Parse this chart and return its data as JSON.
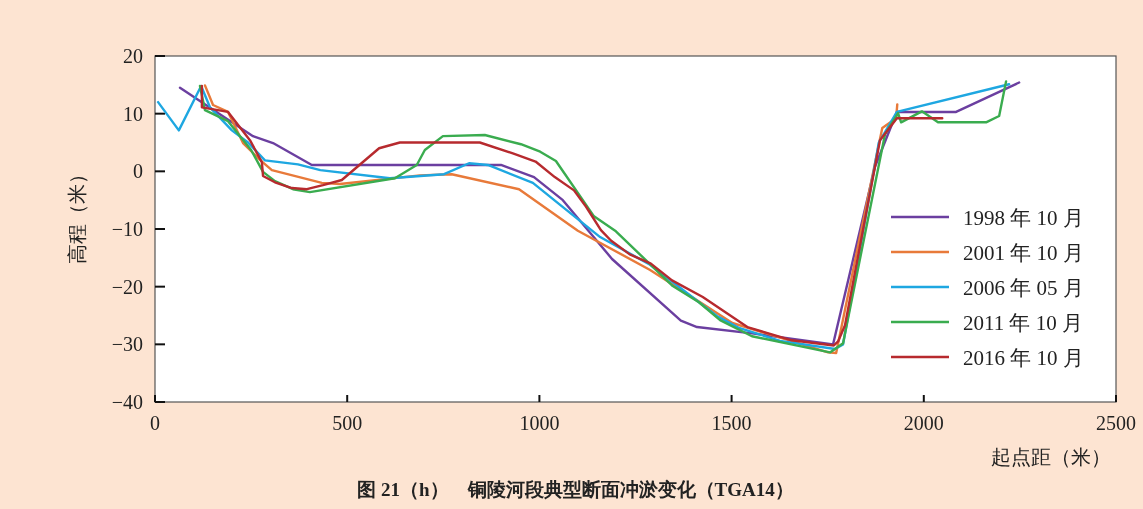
{
  "chart_data": {
    "type": "line",
    "title": "图 21（h）　铜陵河段典型断面冲淤变化（TGA14）",
    "xlabel": "起点距（米）",
    "ylabel": "高程（米）",
    "xlim": [
      0,
      2500
    ],
    "xticks": [
      0,
      500,
      1000,
      1500,
      2000,
      2500
    ],
    "ylim": [
      -40,
      20
    ],
    "yticks": [
      -40,
      -30,
      -20,
      -10,
      0,
      10,
      20
    ],
    "grid": false,
    "legend": "right",
    "series": [
      {
        "name": "1998 年 10 月",
        "color": "#6b3fa0",
        "x": [
          65,
          255,
          307,
          408,
          900,
          986,
          1061,
          1189,
          1368,
          1410,
          1553,
          1764,
          1873,
          1930,
          2084,
          2248
        ],
        "values": [
          14.5,
          6.1,
          4.9,
          1.1,
          1.1,
          -1,
          -5,
          -15.2,
          -25.9,
          -27,
          -28.1,
          -30,
          0.8,
          10.3,
          10.3,
          15.4
        ]
      },
      {
        "name": "2001 年 10 月",
        "color": "#e87a3a",
        "x": [
          130,
          151,
          190,
          229,
          273,
          304,
          434,
          481,
          689,
          772,
          947,
          1100,
          1288,
          1502,
          1751,
          1772,
          1881,
          1892,
          1928,
          1931
        ],
        "values": [
          14.9,
          11.5,
          10.3,
          4.9,
          2,
          0.2,
          -2,
          -2.2,
          -0.7,
          -0.5,
          -3.1,
          -10.3,
          -17.1,
          -26.3,
          -31.4,
          -31.5,
          4,
          7.5,
          9.2,
          11.6
        ]
      },
      {
        "name": "2006 年 05 月",
        "color": "#1ea7e1",
        "x": [
          8,
          62,
          120,
          143,
          200,
          242,
          286,
          372,
          430,
          611,
          752,
          817,
          866,
          983,
          1158,
          1288,
          1462,
          1521,
          1626,
          1769,
          1790,
          1883,
          1930,
          2222
        ],
        "values": [
          12,
          7.1,
          14.8,
          11.1,
          7.1,
          5,
          1.9,
          1.2,
          0.2,
          -1.2,
          -0.5,
          1.4,
          1.1,
          -2,
          -11.4,
          -16.2,
          -25.1,
          -27.2,
          -29.4,
          -30.8,
          -30,
          5,
          10.3,
          15.1
        ]
      },
      {
        "name": "2011 年 10 月",
        "color": "#3aac4f",
        "x": [
          117,
          130,
          190,
          250,
          281,
          312,
          359,
          403,
          624,
          681,
          702,
          749,
          858,
          952,
          1002,
          1043,
          1142,
          1199,
          1347,
          1415,
          1470,
          1553,
          1756,
          1790,
          1899,
          1933,
          1941,
          1995,
          2037,
          2162,
          2196,
          2214
        ],
        "values": [
          14.8,
          10.6,
          8.7,
          3.7,
          -0.1,
          -1.7,
          -3.1,
          -3.6,
          -1.2,
          1.1,
          3.7,
          6.1,
          6.3,
          4.7,
          3.4,
          1.8,
          -7.8,
          -10.4,
          -19.9,
          -22.7,
          -25.8,
          -28.6,
          -31.4,
          -29.8,
          6.4,
          10.1,
          8.5,
          10.4,
          8.5,
          8.5,
          9.6,
          15.6
        ]
      },
      {
        "name": "2016 年 10 月",
        "color": "#b72a2e",
        "x": [
          122,
          122,
          190,
          247,
          278,
          281,
          312,
          356,
          395,
          437,
          486,
          583,
          637,
          845,
          931,
          990,
          1040,
          1090,
          1121,
          1160,
          1186,
          1235,
          1290,
          1345,
          1425,
          1541,
          1657,
          1766,
          1777,
          1795,
          1886,
          1930,
          2048
        ],
        "values": [
          14.8,
          11.1,
          10.3,
          5.4,
          1.6,
          -0.8,
          -1.9,
          -2.9,
          -3.1,
          -2.4,
          -1.5,
          4,
          5,
          5,
          3.1,
          1.7,
          -1,
          -3.3,
          -6.1,
          -10.2,
          -12,
          -14.4,
          -16,
          -18.9,
          -21.8,
          -27,
          -29.3,
          -30.2,
          -29.5,
          -26.7,
          5.4,
          9.2,
          9.2
        ]
      }
    ]
  }
}
